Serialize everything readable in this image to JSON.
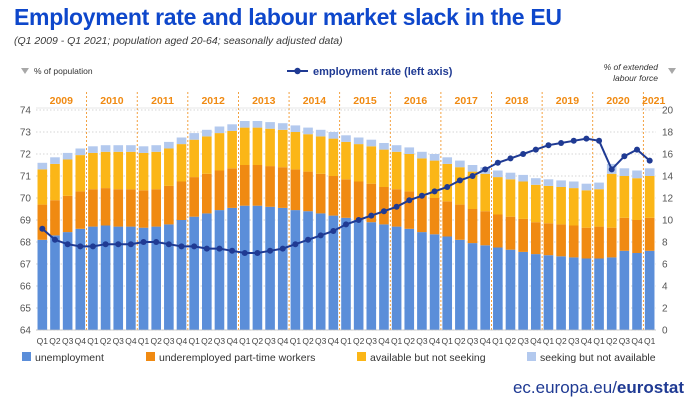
{
  "header": {
    "title": "Employment rate and labour market slack in the EU",
    "subtitle": "(Q1 2009 - Q1 2021; population aged 20-64; seasonally adjusted data)"
  },
  "footer": {
    "site": "ec.europa.eu/",
    "brand": "eurostat"
  },
  "colors": {
    "unemployment": "#5b8ed9",
    "underemployed": "#f08a12",
    "available_not_seeking": "#fbb617",
    "seeking_not_available": "#b3c9ee",
    "line": "#1f3a93",
    "year_labels": "#f08a12",
    "background": "#ffffff"
  },
  "chart_data": {
    "type": "bar+line",
    "left_axis_note": "% of population",
    "right_axis_note_line1": "% of extended",
    "right_axis_note_line2": "labour force",
    "line_legend": "employment rate (left axis)",
    "left_ylim": [
      64,
      74
    ],
    "right_ylim": [
      0,
      20
    ],
    "left_ticks": [
      "64",
      "65",
      "66",
      "67",
      "68",
      "69",
      "70",
      "71",
      "72",
      "73",
      "74"
    ],
    "right_ticks": [
      "0",
      "2",
      "4",
      "6",
      "8",
      "10",
      "12",
      "14",
      "16",
      "18",
      "20"
    ],
    "years": [
      "2009",
      "2010",
      "2011",
      "2012",
      "2013",
      "2014",
      "2015",
      "2016",
      "2017",
      "2018",
      "2019",
      "2020",
      "2021"
    ],
    "quarter_labels": [
      "Q1",
      "Q2",
      "Q3",
      "Q4"
    ],
    "categories": [
      "2009-Q1",
      "2009-Q2",
      "2009-Q3",
      "2009-Q4",
      "2010-Q1",
      "2010-Q2",
      "2010-Q3",
      "2010-Q4",
      "2011-Q1",
      "2011-Q2",
      "2011-Q3",
      "2011-Q4",
      "2012-Q1",
      "2012-Q2",
      "2012-Q3",
      "2012-Q4",
      "2013-Q1",
      "2013-Q2",
      "2013-Q3",
      "2013-Q4",
      "2014-Q1",
      "2014-Q2",
      "2014-Q3",
      "2014-Q4",
      "2015-Q1",
      "2015-Q2",
      "2015-Q3",
      "2015-Q4",
      "2016-Q1",
      "2016-Q2",
      "2016-Q3",
      "2016-Q4",
      "2017-Q1",
      "2017-Q2",
      "2017-Q3",
      "2017-Q4",
      "2018-Q1",
      "2018-Q2",
      "2018-Q3",
      "2018-Q4",
      "2019-Q1",
      "2019-Q2",
      "2019-Q3",
      "2019-Q4",
      "2020-Q1",
      "2020-Q2",
      "2020-Q3",
      "2020-Q4",
      "2021-Q1"
    ],
    "series": [
      {
        "name": "unemployment",
        "axis": "right",
        "values": [
          8.2,
          8.6,
          8.9,
          9.2,
          9.4,
          9.5,
          9.4,
          9.4,
          9.3,
          9.4,
          9.6,
          10.0,
          10.3,
          10.6,
          10.9,
          11.1,
          11.3,
          11.3,
          11.2,
          11.1,
          10.9,
          10.8,
          10.6,
          10.4,
          10.2,
          10.0,
          9.8,
          9.6,
          9.4,
          9.2,
          8.9,
          8.7,
          8.5,
          8.2,
          7.9,
          7.7,
          7.5,
          7.3,
          7.1,
          6.9,
          6.8,
          6.7,
          6.6,
          6.5,
          6.5,
          6.6,
          7.2,
          7.0,
          7.2
        ]
      },
      {
        "name": "underemployed part-time workers",
        "axis": "right",
        "values": [
          3.2,
          3.2,
          3.3,
          3.4,
          3.4,
          3.4,
          3.4,
          3.4,
          3.4,
          3.4,
          3.5,
          3.5,
          3.6,
          3.6,
          3.6,
          3.6,
          3.7,
          3.7,
          3.7,
          3.7,
          3.7,
          3.6,
          3.6,
          3.6,
          3.5,
          3.5,
          3.5,
          3.4,
          3.4,
          3.4,
          3.3,
          3.3,
          3.2,
          3.2,
          3.1,
          3.1,
          3.0,
          3.0,
          3.0,
          2.9,
          2.9,
          2.9,
          2.9,
          2.8,
          2.9,
          2.7,
          3.0,
          3.0,
          3.0
        ]
      },
      {
        "name": "available but not seeking",
        "axis": "right",
        "values": [
          3.2,
          3.3,
          3.3,
          3.3,
          3.3,
          3.3,
          3.4,
          3.4,
          3.4,
          3.4,
          3.4,
          3.4,
          3.4,
          3.4,
          3.4,
          3.4,
          3.4,
          3.4,
          3.4,
          3.4,
          3.4,
          3.4,
          3.4,
          3.4,
          3.4,
          3.4,
          3.4,
          3.4,
          3.4,
          3.4,
          3.4,
          3.4,
          3.4,
          3.4,
          3.4,
          3.4,
          3.4,
          3.4,
          3.4,
          3.4,
          3.4,
          3.4,
          3.4,
          3.4,
          3.4,
          4.9,
          3.8,
          3.8,
          3.8
        ]
      },
      {
        "name": "seeking but not available",
        "axis": "right",
        "values": [
          0.6,
          0.6,
          0.6,
          0.6,
          0.6,
          0.6,
          0.6,
          0.6,
          0.6,
          0.6,
          0.6,
          0.6,
          0.6,
          0.6,
          0.6,
          0.6,
          0.6,
          0.6,
          0.6,
          0.6,
          0.6,
          0.6,
          0.6,
          0.6,
          0.6,
          0.6,
          0.6,
          0.6,
          0.6,
          0.6,
          0.6,
          0.6,
          0.6,
          0.6,
          0.6,
          0.6,
          0.6,
          0.6,
          0.6,
          0.6,
          0.6,
          0.6,
          0.6,
          0.6,
          0.6,
          0.9,
          0.7,
          0.7,
          0.7
        ]
      },
      {
        "name": "employment rate (left axis)",
        "axis": "left",
        "type": "line",
        "values": [
          68.6,
          68.1,
          67.9,
          67.8,
          67.8,
          67.9,
          67.9,
          67.9,
          68.0,
          68.0,
          67.9,
          67.8,
          67.8,
          67.7,
          67.7,
          67.6,
          67.5,
          67.5,
          67.6,
          67.7,
          67.9,
          68.1,
          68.3,
          68.5,
          68.8,
          69.0,
          69.2,
          69.4,
          69.6,
          69.9,
          70.1,
          70.3,
          70.5,
          70.8,
          71.0,
          71.3,
          71.6,
          71.8,
          72.0,
          72.2,
          72.4,
          72.5,
          72.6,
          72.7,
          72.6,
          71.3,
          71.9,
          72.2,
          71.7
        ]
      }
    ],
    "legend": [
      "unemployment",
      "underemployed part-time workers",
      "available but not seeking",
      "seeking but not available"
    ]
  }
}
